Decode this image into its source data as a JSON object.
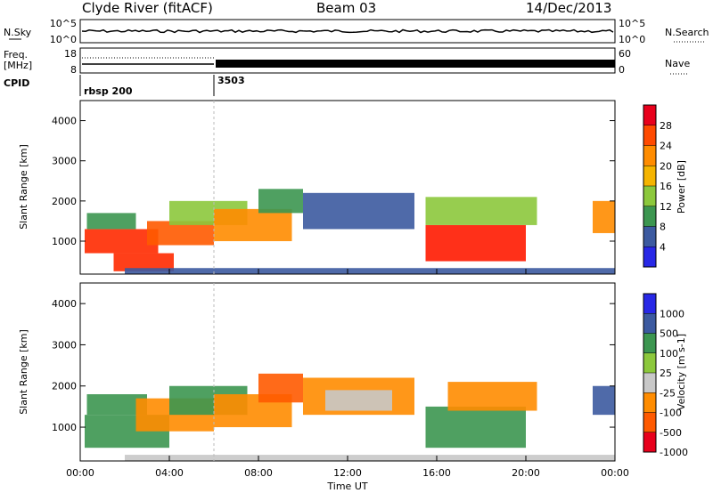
{
  "header": {
    "station": "Clyde River (fitACF)",
    "beam": "Beam 03",
    "date": "14/Dec/2013"
  },
  "noise_panel": {
    "left_label": "N.Sky",
    "left_ticks": [
      "10^5",
      "10^0"
    ],
    "right_ticks": [
      "10^5",
      "10^0"
    ],
    "right_label": "N.Search"
  },
  "freq_panel": {
    "left_label_1": "Freq.",
    "left_label_2": "[MHz]",
    "left_ticks": [
      "18",
      "8"
    ],
    "right_ticks": [
      "60",
      "0"
    ],
    "right_label": "Nave"
  },
  "cpid_panel": {
    "label": "CPID",
    "segments": [
      {
        "name": "rbsp 200",
        "start_ut": 0
      },
      {
        "name": "3503",
        "start_ut": 6
      }
    ]
  },
  "chart_data": [
    {
      "type": "heatmap",
      "id": "power",
      "ylabel": "Slant Range [km]",
      "xlim": [
        0,
        24
      ],
      "ylim": [
        180,
        4500
      ],
      "yticks": [
        1000,
        2000,
        3000,
        4000
      ],
      "colorbar": {
        "label": "Power [dB]",
        "ticks": [
          "28",
          "24",
          "20",
          "16",
          "12",
          "8",
          "4"
        ],
        "colors": [
          "#e8001c",
          "#ff4a00",
          "#ff8c00",
          "#f5b400",
          "#8cc83c",
          "#3c9650",
          "#3c5aa0",
          "#2828e6"
        ]
      },
      "regions": [
        {
          "t0": 0.2,
          "t1": 3.5,
          "r0": 700,
          "r1": 1300,
          "color": "#ff2a00"
        },
        {
          "t0": 0.3,
          "t1": 2.5,
          "r0": 1300,
          "r1": 1700,
          "color": "#3c9650"
        },
        {
          "t0": 1.5,
          "t1": 4.2,
          "r0": 250,
          "r1": 700,
          "color": "#ff2a00"
        },
        {
          "t0": 3.0,
          "t1": 6.0,
          "r0": 900,
          "r1": 1500,
          "color": "#ff5a00"
        },
        {
          "t0": 4.0,
          "t1": 7.5,
          "r0": 1400,
          "r1": 2000,
          "color": "#8cc83c"
        },
        {
          "t0": 6.0,
          "t1": 9.5,
          "r0": 1000,
          "r1": 1800,
          "color": "#ff8c00"
        },
        {
          "t0": 8.0,
          "t1": 10.0,
          "r0": 1700,
          "r1": 2300,
          "color": "#3c9650"
        },
        {
          "t0": 10.0,
          "t1": 15.0,
          "r0": 1300,
          "r1": 2200,
          "color": "#3c5aa0"
        },
        {
          "t0": 15.5,
          "t1": 20.0,
          "r0": 500,
          "r1": 1400,
          "color": "#ff1a00"
        },
        {
          "t0": 15.5,
          "t1": 20.5,
          "r0": 1400,
          "r1": 2100,
          "color": "#8cc83c"
        },
        {
          "t0": 23.0,
          "t1": 24.0,
          "r0": 1200,
          "r1": 2000,
          "color": "#ff8c00"
        },
        {
          "t0": 2.0,
          "t1": 24.0,
          "r0": 180,
          "r1": 330,
          "color": "#3c5aa0"
        }
      ]
    },
    {
      "type": "heatmap",
      "id": "velocity",
      "ylabel": "Slant Range [km]",
      "xlabel": "Time UT",
      "xlim": [
        0,
        24
      ],
      "ylim": [
        180,
        4500
      ],
      "yticks": [
        1000,
        2000,
        3000,
        4000
      ],
      "xticks": [
        "00:00",
        "04:00",
        "08:00",
        "12:00",
        "16:00",
        "20:00",
        "00:00"
      ],
      "colorbar": {
        "label": "Velocity [m s-1]",
        "ticks": [
          "1000",
          "500",
          "100",
          "25",
          "-25",
          "-100",
          "-500",
          "-1000"
        ],
        "colors": [
          "#2828e6",
          "#3c5aa0",
          "#3c9650",
          "#8cc83c",
          "#c8c8c8",
          "#ff8c00",
          "#ff5a00",
          "#e8001c"
        ]
      },
      "regions": [
        {
          "t0": 0.2,
          "t1": 4.0,
          "r0": 500,
          "r1": 1300,
          "color": "#3c9650"
        },
        {
          "t0": 0.3,
          "t1": 3.0,
          "r0": 1300,
          "r1": 1800,
          "color": "#3c9650"
        },
        {
          "t0": 2.5,
          "t1": 6.0,
          "r0": 900,
          "r1": 1700,
          "color": "#ff8c00"
        },
        {
          "t0": 4.0,
          "t1": 7.5,
          "r0": 1300,
          "r1": 2000,
          "color": "#3c9650"
        },
        {
          "t0": 6.0,
          "t1": 9.5,
          "r0": 1000,
          "r1": 1800,
          "color": "#ff8c00"
        },
        {
          "t0": 8.0,
          "t1": 10.0,
          "r0": 1600,
          "r1": 2300,
          "color": "#ff5a00"
        },
        {
          "t0": 10.0,
          "t1": 15.0,
          "r0": 1300,
          "r1": 2200,
          "color": "#ff8c00"
        },
        {
          "t0": 11.0,
          "t1": 14.0,
          "r0": 1400,
          "r1": 1900,
          "color": "#c8c8c8"
        },
        {
          "t0": 15.5,
          "t1": 20.0,
          "r0": 500,
          "r1": 1500,
          "color": "#3c9650"
        },
        {
          "t0": 16.5,
          "t1": 20.5,
          "r0": 1400,
          "r1": 2100,
          "color": "#ff8c00"
        },
        {
          "t0": 23.0,
          "t1": 24.0,
          "r0": 1300,
          "r1": 2000,
          "color": "#3c5aa0"
        },
        {
          "t0": 2.0,
          "t1": 24.0,
          "r0": 180,
          "r1": 330,
          "color": "#c8c8c8"
        }
      ]
    }
  ]
}
